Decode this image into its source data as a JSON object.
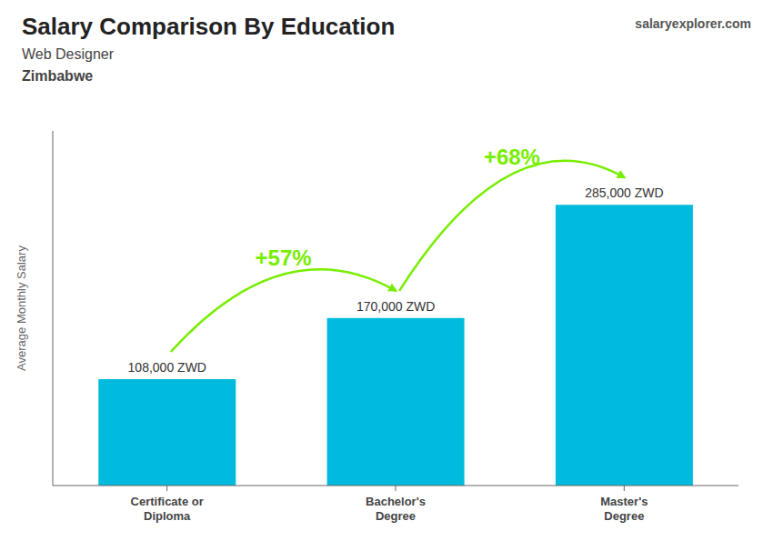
{
  "chart_data": {
    "type": "bar",
    "title": "Salary Comparison By Education",
    "subtitle": [
      "Web Designer",
      "Zimbabwe"
    ],
    "ylabel": "Average Monthly Salary",
    "categories": [
      "Certificate or\nDiploma",
      "Bachelor's\nDegree",
      "Master's\nDegree"
    ],
    "values": [
      108000,
      170000,
      285000
    ],
    "value_labels": [
      "108,000 ZWD",
      "170,000 ZWD",
      "285,000 ZWD"
    ],
    "data_labels": true,
    "color": "#00bbdd",
    "ylim": [
      0,
      360000
    ],
    "tick_labels": "x",
    "grid": false,
    "annotations": [
      {
        "text": "+57%",
        "color": "#77ee00"
      },
      {
        "text": "+68%",
        "color": "#77ee00"
      },
      {
        "text": "salaryexplorer.com"
      }
    ]
  }
}
